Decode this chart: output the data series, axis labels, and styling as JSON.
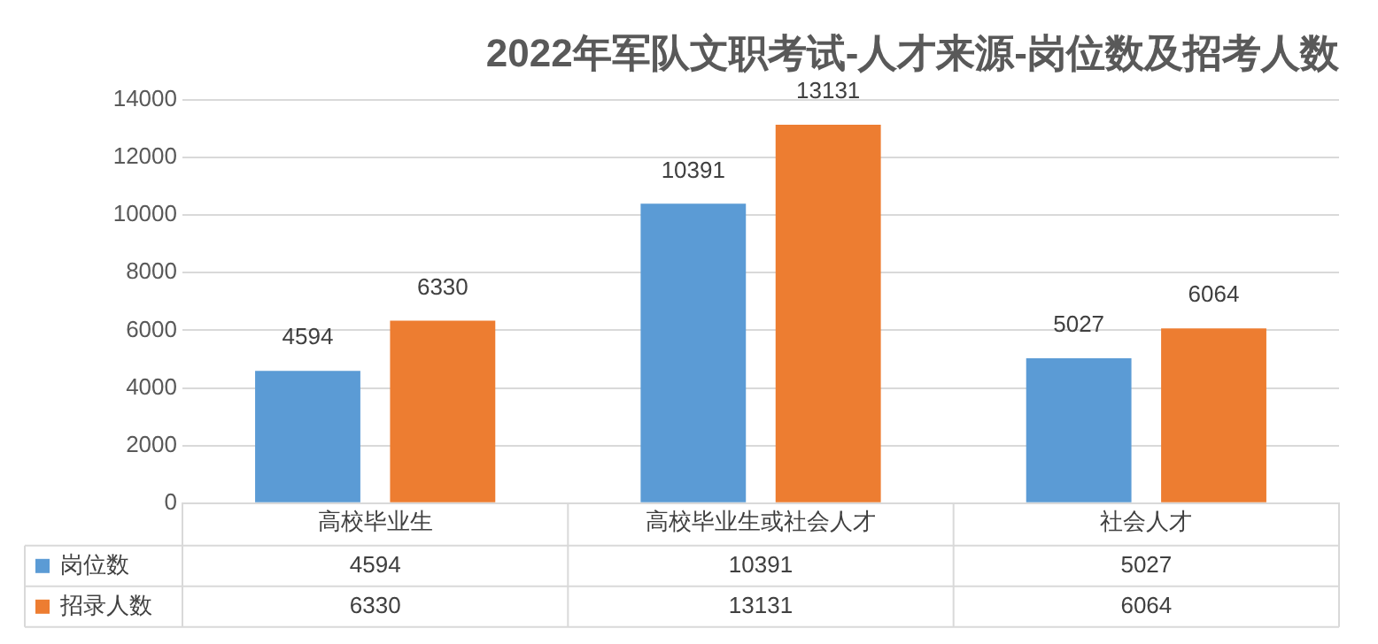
{
  "chart_data": {
    "type": "bar",
    "title": "2022年军队文职考试-人才来源-岗位数及招考人数",
    "categories": [
      "高校毕业生",
      "高校毕业生或社会人才",
      "社会人才"
    ],
    "series": [
      {
        "name": "岗位数",
        "color": "#5b9bd5",
        "values": [
          4594,
          10391,
          5027
        ],
        "value_labels": [
          "4594",
          "10391",
          "5027"
        ]
      },
      {
        "name": "招录人数",
        "color": "#ed7d31",
        "values": [
          6330,
          13131,
          6064
        ],
        "value_labels": [
          "6330",
          "13131",
          "6064"
        ]
      }
    ],
    "ylim": [
      0,
      14000
    ],
    "yticks": [
      0,
      2000,
      4000,
      6000,
      8000,
      10000,
      12000,
      14000
    ],
    "annotations": [
      "4594",
      "10391",
      "5027",
      "6330",
      "13131",
      "6064"
    ],
    "grid": "y",
    "legend": "bottom"
  }
}
